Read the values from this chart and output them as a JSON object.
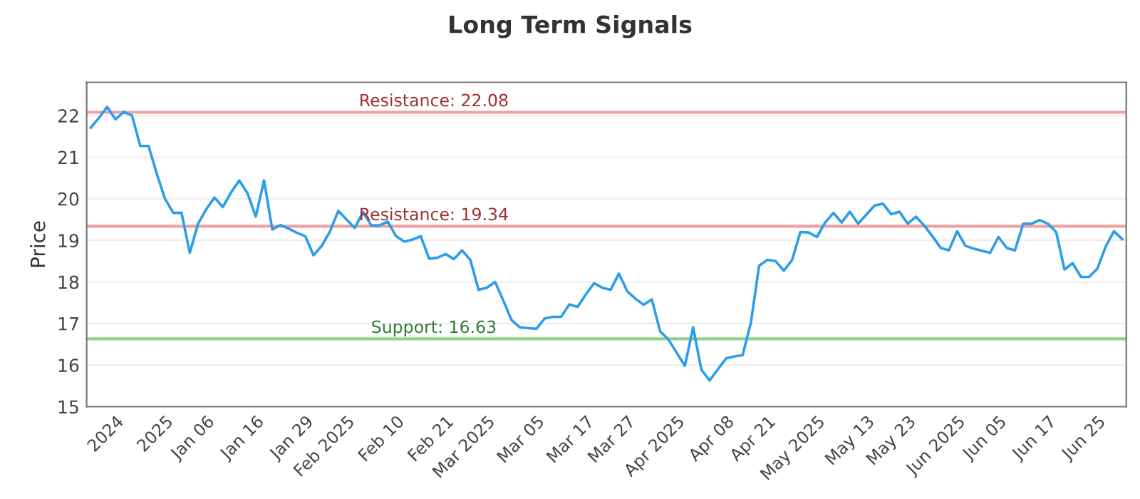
{
  "chart_data": {
    "type": "line",
    "title": "Long Term Signals",
    "ylabel": "Price",
    "categories": [
      null,
      null,
      null,
      "2024",
      null,
      null,
      null,
      null,
      null,
      "2025",
      null,
      null,
      null,
      null,
      "Jan 06",
      null,
      null,
      null,
      null,
      null,
      "Jan 16",
      null,
      null,
      null,
      null,
      null,
      "Jan 29",
      null,
      null,
      null,
      null,
      "Feb 2025",
      null,
      null,
      null,
      null,
      null,
      "Feb 10",
      null,
      null,
      null,
      null,
      null,
      "Feb 21",
      null,
      null,
      null,
      null,
      "Mar 2025",
      null,
      null,
      null,
      null,
      null,
      "Mar 05",
      null,
      null,
      null,
      null,
      null,
      "Mar 17",
      null,
      null,
      null,
      null,
      "Mar 27",
      null,
      null,
      null,
      null,
      null,
      "Apr 2025",
      null,
      null,
      null,
      null,
      null,
      "Apr 08",
      null,
      null,
      null,
      null,
      "Apr 21",
      null,
      null,
      null,
      null,
      null,
      "May 2025",
      null,
      null,
      null,
      null,
      null,
      "May 13",
      null,
      null,
      null,
      null,
      "May 23",
      null,
      null,
      null,
      null,
      null,
      "Jun 2025",
      null,
      null,
      null,
      null,
      "Jun 05",
      null,
      null,
      null,
      null,
      null,
      "Jun 17",
      null,
      null,
      null,
      null,
      null,
      "Jun 25",
      null,
      null,
      null
    ],
    "series": [
      {
        "color": "#2e9de8",
        "values": [
          21.71,
          21.95,
          22.21,
          21.91,
          22.09,
          22.0,
          21.27,
          21.27,
          20.6,
          20.0,
          19.66,
          19.66,
          18.7,
          19.4,
          19.75,
          20.03,
          19.8,
          20.15,
          20.44,
          20.13,
          19.57,
          20.44,
          19.26,
          19.37,
          19.28,
          19.18,
          19.1,
          18.64,
          18.87,
          19.22,
          19.71,
          19.5,
          19.3,
          19.68,
          19.36,
          19.36,
          19.45,
          19.1,
          18.97,
          19.02,
          19.1,
          18.56,
          18.58,
          18.67,
          18.55,
          18.76,
          18.53,
          17.81,
          17.86,
          18.0,
          17.55,
          17.08,
          16.91,
          16.89,
          16.87,
          17.12,
          17.16,
          17.16,
          17.46,
          17.4,
          17.7,
          17.97,
          17.86,
          17.81,
          18.2,
          17.78,
          17.6,
          17.45,
          17.58,
          16.81,
          16.62,
          16.3,
          15.98,
          16.91,
          15.89,
          15.63,
          15.9,
          16.16,
          16.21,
          16.24,
          17.02,
          18.39,
          18.53,
          18.5,
          18.27,
          18.53,
          19.2,
          19.19,
          19.08,
          19.43,
          19.66,
          19.43,
          19.69,
          19.4,
          19.62,
          19.84,
          19.88,
          19.63,
          19.69,
          19.4,
          19.57,
          19.36,
          19.1,
          18.82,
          18.76,
          19.22,
          18.87,
          18.8,
          18.75,
          18.7,
          19.08,
          18.82,
          18.76,
          19.4,
          19.4,
          19.49,
          19.4,
          19.2,
          18.3,
          18.45,
          18.12,
          18.12,
          18.32,
          18.85,
          19.22,
          19.03
        ]
      }
    ],
    "ylim": [
      15,
      22.8
    ],
    "yticks": [
      15,
      16,
      17,
      18,
      19,
      20,
      21,
      22
    ],
    "grid": "y",
    "ref_lines": [
      {
        "axis": "y",
        "value": 22.08,
        "label": "Resistance: 22.08",
        "color": "#f0a0a0"
      },
      {
        "axis": "y",
        "value": 19.34,
        "label": "Resistance: 19.34",
        "color": "#f0a0a0"
      },
      {
        "axis": "y",
        "value": 16.63,
        "label": "Support: 16.63",
        "color": "#90d090"
      }
    ]
  }
}
